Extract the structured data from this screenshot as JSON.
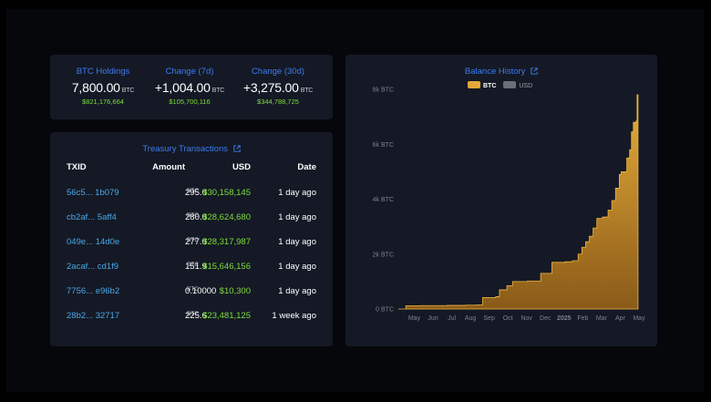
{
  "summary": [
    {
      "label": "BTC Holdings",
      "value": "7,800.00",
      "unit": "BTC",
      "usd": "$821,176,664"
    },
    {
      "label": "Change (7d)",
      "value": "+1,004.00",
      "unit": "BTC",
      "usd": "$105,700,116"
    },
    {
      "label": "Change (30d)",
      "value": "+3,275.00",
      "unit": "BTC",
      "usd": "$344,788,725"
    }
  ],
  "transactions": {
    "title": "Treasury Transactions",
    "headers": {
      "txid": "TXID",
      "amount": "Amount",
      "usd": "USD",
      "date": "Date"
    },
    "rows": [
      {
        "txid": "56c5... 1b079",
        "amount": "295.0",
        "unit": "BTC",
        "usd": "$30,158,145",
        "date": "1 day ago"
      },
      {
        "txid": "cb2af... 5aff4",
        "amount": "280.0",
        "unit": "BTC",
        "usd": "$28,624,680",
        "date": "1 day ago"
      },
      {
        "txid": "049e... 14d0e",
        "amount": "277.0",
        "unit": "BTC",
        "usd": "$28,317,987",
        "date": "1 day ago"
      },
      {
        "txid": "2acaf... cd1f9",
        "amount": "151.9",
        "unit": "BTC",
        "usd": "$15,646,156",
        "date": "1 day ago"
      },
      {
        "txid": "7756... e96b2",
        "amount": "0.10000",
        "unit": "BTC",
        "usd": "$10,300",
        "date": "1 day ago"
      },
      {
        "txid": "28b2... 32717",
        "amount": "225.6",
        "unit": "BTC",
        "usd": "$23,481,125",
        "date": "1 week ago"
      }
    ]
  },
  "colors": {
    "accent": "#3d7bf0",
    "positive": "#7ddd3a",
    "link": "#4aa8e8",
    "area": "#d99a2b"
  },
  "chart_data": {
    "type": "area",
    "title": "Balance History",
    "legend": [
      "BTC",
      "USD"
    ],
    "x_ticks": [
      "May",
      "Jun",
      "Jul",
      "Aug",
      "Sep",
      "Oct",
      "Nov",
      "Dec",
      "2025",
      "Feb",
      "Mar",
      "Apr",
      "May"
    ],
    "y_ticks": [
      "0 BTC",
      "2k BTC",
      "4k BTC",
      "6k BTC",
      "8k BTC"
    ],
    "ylim": [
      0,
      8000
    ],
    "x_month_range": [
      0,
      12.9
    ],
    "series": [
      {
        "name": "BTC",
        "points": [
          [
            0,
            0
          ],
          [
            0.4,
            120
          ],
          [
            1.2,
            125
          ],
          [
            2.6,
            130
          ],
          [
            3.6,
            140
          ],
          [
            4.2,
            150
          ],
          [
            4.5,
            420
          ],
          [
            5.2,
            450
          ],
          [
            5.4,
            700
          ],
          [
            5.8,
            850
          ],
          [
            6.1,
            1000
          ],
          [
            6.9,
            1020
          ],
          [
            7.6,
            1300
          ],
          [
            8.2,
            1700
          ],
          [
            8.9,
            1720
          ],
          [
            9.3,
            1760
          ],
          [
            9.6,
            2000
          ],
          [
            9.8,
            2250
          ],
          [
            10.0,
            2450
          ],
          [
            10.2,
            2650
          ],
          [
            10.4,
            2950
          ],
          [
            10.6,
            3300
          ],
          [
            10.9,
            3350
          ],
          [
            11.2,
            3600
          ],
          [
            11.4,
            3950
          ],
          [
            11.6,
            4400
          ],
          [
            11.8,
            4900
          ],
          [
            11.9,
            5000
          ],
          [
            12.1,
            5000
          ],
          [
            12.2,
            5500
          ],
          [
            12.35,
            5800
          ],
          [
            12.45,
            6450
          ],
          [
            12.55,
            6800
          ],
          [
            12.7,
            6850
          ],
          [
            12.75,
            7800
          ],
          [
            12.8,
            7800
          ]
        ]
      }
    ]
  }
}
